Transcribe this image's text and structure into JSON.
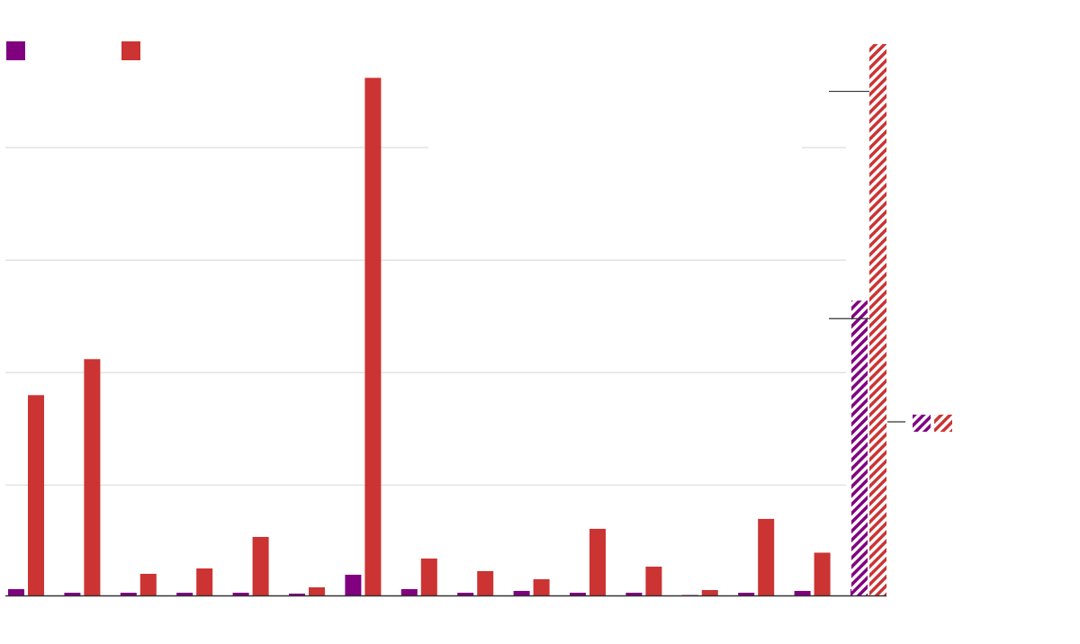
{
  "chart_data": {
    "type": "bar",
    "categories": [
      "",
      "",
      "",
      "",
      "",
      "",
      "",
      "",
      "",
      "",
      "",
      "",
      "",
      "",
      "",
      ""
    ],
    "ylim": [
      0,
      245
    ],
    "gridlines": [
      0,
      49,
      99,
      149,
      199
    ],
    "grid": true,
    "legend_placement": "top-left",
    "colors": {
      "series_a": "#800080",
      "series_b": "#cc3333",
      "grid": "#e3e3e3",
      "axis": "#333333"
    },
    "series": [
      {
        "values": [
          2.8,
          1.2,
          1.2,
          1.2,
          1.2,
          0.8,
          9.2,
          2.8,
          1.2,
          2.0,
          1.2,
          1.2,
          0.2,
          1.2,
          2.0,
          2.8
        ]
      },
      {
        "values": [
          89,
          105,
          9.6,
          12,
          26,
          3.6,
          230,
          16.4,
          10.8,
          7.2,
          29.6,
          12.8,
          2.4,
          34,
          19,
          22.4
        ]
      }
    ],
    "total": {
      "values": [
        131,
        245
      ],
      "hatched": true,
      "reference_marks": [
        224,
        123
      ]
    }
  }
}
